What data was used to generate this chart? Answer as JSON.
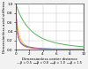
{
  "title": "",
  "xlabel": "Dimensionless center distance",
  "ylabel": "Dimensionless axial stiffness",
  "xlim": [
    0,
    10
  ],
  "ylim": [
    0,
    1.0
  ],
  "grid": true,
  "series": [
    {
      "label": "β = 0.5",
      "color": "#e8c030",
      "k": 0.8,
      "n": 1.2
    },
    {
      "label": "β = 0.8",
      "color": "#4070d0",
      "k": 1.5,
      "n": 1.5
    },
    {
      "label": "β = 1.0",
      "color": "#e05878",
      "k": 2.5,
      "n": 1.8
    },
    {
      "label": "β = 1.5",
      "color": "#50b850",
      "k": 0.3,
      "n": 0.8
    }
  ],
  "x_ticks": [
    0,
    2,
    4,
    6,
    8,
    10
  ],
  "y_ticks": [
    0.0,
    0.2,
    0.4,
    0.6,
    0.8,
    1.0
  ],
  "bg_color": "#f2f2f2",
  "plot_bg": "#ffffff",
  "figsize": [
    1.0,
    0.78
  ],
  "dpi": 100
}
